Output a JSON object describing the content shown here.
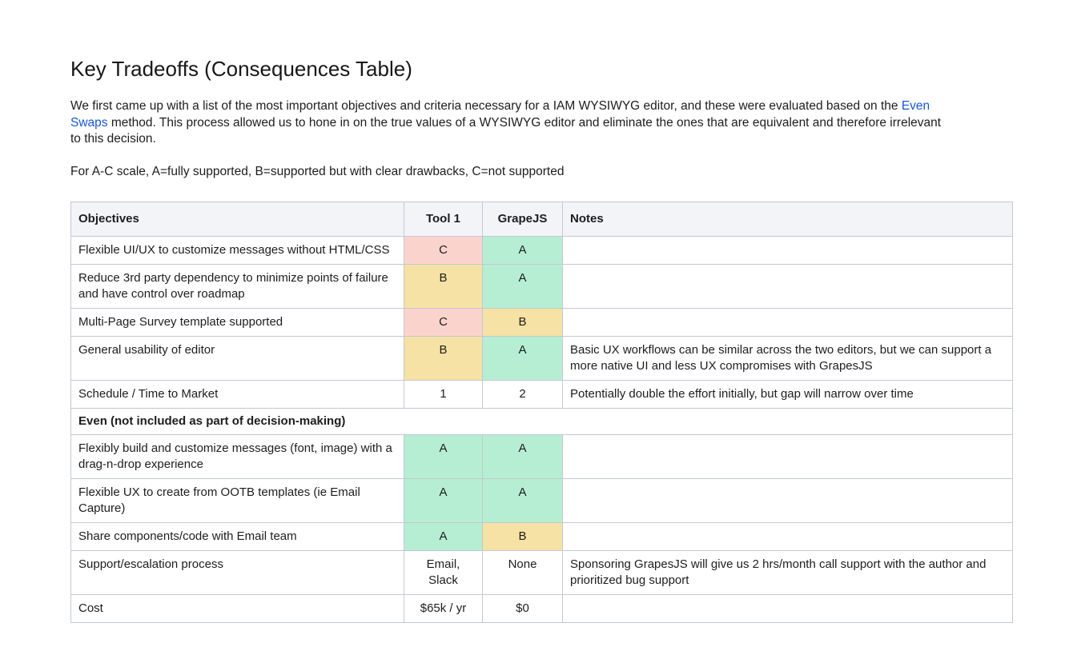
{
  "page": {
    "title": "Key Tradeoffs (Consequences Table)",
    "intro": {
      "before_link": "We first came up with a list of the most important objectives and criteria necessary for a IAM WYSIWYG editor, and these were evaluated based on the ",
      "link_text": "Even Swaps",
      "after_link": " method. This process allowed us to hone in on the true values of a WYSIWYG editor and eliminate the ones that are equivalent and therefore irrelevant to this decision."
    },
    "scale_note": "For A-C scale, A=fully supported, B=supported but with clear drawbacks, C=not supported"
  },
  "colors": {
    "green": "#b6eed3",
    "yellow": "#f6e2a4",
    "red": "#fbd3cd",
    "header_bg": "#f3f4f7",
    "border": "#c3c8d1",
    "link": "#1558d6"
  },
  "table": {
    "headers": [
      "Objectives",
      "Tool 1",
      "GrapeJS",
      "Notes"
    ],
    "rows": [
      {
        "objective": "Flexible UI/UX to customize messages without HTML/CSS",
        "tool1": "C",
        "tool1_color": "red",
        "grapejs": "A",
        "grapejs_color": "green",
        "notes": ""
      },
      {
        "objective": "Reduce 3rd party dependency to minimize points of failure and have control over roadmap",
        "tool1": "B",
        "tool1_color": "yellow",
        "grapejs": "A",
        "grapejs_color": "green",
        "notes": ""
      },
      {
        "objective": "Multi-Page Survey template supported",
        "tool1": "C",
        "tool1_color": "red",
        "grapejs": "B",
        "grapejs_color": "yellow",
        "notes": ""
      },
      {
        "objective": "General usability of editor",
        "tool1": "B",
        "tool1_color": "yellow",
        "grapejs": "A",
        "grapejs_color": "green",
        "notes": "Basic UX workflows can be similar across the two editors, but we can support a more native UI and less UX compromises with GrapesJS"
      },
      {
        "objective": "Schedule / Time to Market",
        "tool1": "1",
        "tool1_color": "none",
        "grapejs": "2",
        "grapejs_color": "none",
        "notes": "Potentially double the effort initially, but gap will narrow over time"
      },
      {
        "type": "section",
        "label": "Even (not included as part of decision-making)"
      },
      {
        "objective": "Flexibly build and customize messages (font, image) with a drag-n-drop experience",
        "tool1": "A",
        "tool1_color": "green",
        "grapejs": "A",
        "grapejs_color": "green",
        "notes": ""
      },
      {
        "objective": "Flexible UX to create from OOTB templates (ie Email Capture)",
        "tool1": "A",
        "tool1_color": "green",
        "grapejs": "A",
        "grapejs_color": "green",
        "notes": ""
      },
      {
        "objective": "Share components/code with Email team",
        "tool1": "A",
        "tool1_color": "green",
        "grapejs": "B",
        "grapejs_color": "yellow",
        "notes": ""
      },
      {
        "objective": "Support/escalation process",
        "tool1": "Email, Slack",
        "tool1_color": "none",
        "grapejs": "None",
        "grapejs_color": "none",
        "notes": "Sponsoring GrapesJS will give us 2 hrs/month call support with the author and prioritized bug support"
      },
      {
        "objective": "Cost",
        "tool1": "$65k / yr",
        "tool1_color": "none",
        "grapejs": "$0",
        "grapejs_color": "none",
        "notes": ""
      }
    ]
  }
}
